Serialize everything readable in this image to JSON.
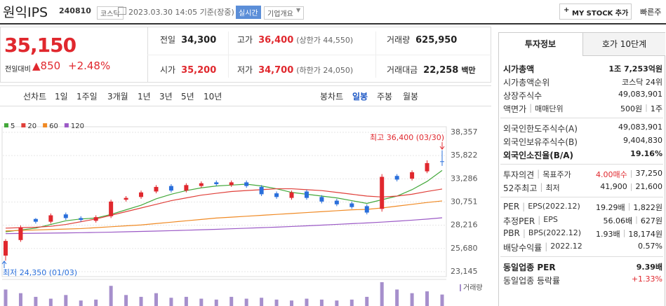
{
  "header": {
    "name": "원익IPS",
    "code": "240810",
    "market": "코스닥",
    "datetime": "2023.03.30 14:05 기준(장중)",
    "realtime": "실시간",
    "overview": "기업개요",
    "mystock": "MY STOCK 추가",
    "quick_order": "빠른주"
  },
  "price": {
    "current": "35,150",
    "change_label": "전일대비",
    "change": "▲850",
    "change_rate": "+2.48%"
  },
  "quote": [
    [
      {
        "label": "전일",
        "value": "34,300"
      },
      {
        "label": "고가",
        "value": "36,400",
        "note": "(상한가 44,550)"
      },
      {
        "label": "거래량",
        "value": "625,950"
      }
    ],
    [
      {
        "label": "시가",
        "value": "35,200"
      },
      {
        "label": "저가",
        "value": "34,700",
        "note": "(하한가 24,050)"
      },
      {
        "label": "거래대금",
        "value": "22,258",
        "note": "백만"
      }
    ]
  ],
  "toolbar": {
    "line": [
      "선차트",
      "1일",
      "1주일",
      "3개월",
      "1년",
      "3년",
      "5년",
      "10년"
    ],
    "candle": [
      "봉차트",
      "일봉",
      "주봉",
      "월봉"
    ]
  },
  "chart_data": {
    "type": "candlestick",
    "up_color": "#e0282e",
    "down_color": "#2a6fdb",
    "ylim": [
      23145,
      38357
    ],
    "yticks": [
      {
        "value": 23145,
        "label": "23,145"
      },
      {
        "value": 25680,
        "label": "25,680"
      },
      {
        "value": 28216,
        "label": "28,216"
      },
      {
        "value": 30751,
        "label": "30,751"
      },
      {
        "value": 33286,
        "label": "33,286"
      },
      {
        "value": 35822,
        "label": "35,822"
      },
      {
        "value": 38357,
        "label": "38,357"
      }
    ],
    "grid": true,
    "open": [
      24900,
      26600,
      28900,
      28600,
      29400,
      29000,
      28700,
      29200,
      31000,
      31300,
      31900,
      32500,
      32000,
      32500,
      32900,
      32600,
      32900,
      32400,
      31700,
      31200,
      31900,
      31300,
      30900,
      30600,
      30300,
      30000,
      33600,
      33300,
      34100,
      35200
    ],
    "high": [
      26700,
      28200,
      29000,
      29500,
      29600,
      29200,
      29300,
      31000,
      31400,
      32000,
      32600,
      32700,
      32800,
      33000,
      33100,
      33100,
      33100,
      32600,
      31900,
      32000,
      32100,
      31500,
      31100,
      30800,
      30500,
      33800,
      33800,
      34200,
      35300,
      36400
    ],
    "low": [
      24350,
      26400,
      28400,
      28400,
      28800,
      28600,
      28500,
      29000,
      30800,
      31100,
      31700,
      31800,
      31800,
      32300,
      32500,
      32400,
      32300,
      31400,
      31100,
      31000,
      31000,
      30600,
      30300,
      30000,
      29400,
      29700,
      33000,
      33100,
      33900,
      34700
    ],
    "close": [
      26500,
      28000,
      28600,
      29300,
      29000,
      28800,
      29100,
      30800,
      31200,
      31800,
      32400,
      32000,
      32600,
      32800,
      32700,
      32900,
      32500,
      31600,
      31300,
      31800,
      31200,
      30800,
      30500,
      30200,
      29600,
      33500,
      33200,
      34000,
      35000,
      35150
    ],
    "ma": [
      {
        "name": "5",
        "color": "#43a83a",
        "values": [
          27500,
          27700,
          27900,
          28300,
          28700,
          28900,
          29000,
          29400,
          29900,
          30400,
          31100,
          31600,
          32000,
          32300,
          32500,
          32600,
          32700,
          32500,
          32200,
          31800,
          31600,
          31400,
          31200,
          30900,
          30600,
          31000,
          31400,
          32100,
          33000,
          34200
        ]
      },
      {
        "name": "20",
        "color": "#e0403a",
        "values": [
          27900,
          27950,
          28000,
          28100,
          28300,
          28600,
          28900,
          29300,
          29700,
          30100,
          30500,
          30900,
          31200,
          31500,
          31700,
          31900,
          32000,
          32100,
          32200,
          32200,
          32100,
          32000,
          31800,
          31600,
          31400,
          31300,
          31400,
          31600,
          31900,
          32170
        ]
      },
      {
        "name": "60",
        "color": "#f08a24",
        "values": [
          27600,
          27650,
          27700,
          27750,
          27800,
          27850,
          27950,
          28050,
          28150,
          28250,
          28400,
          28550,
          28700,
          28850,
          29000,
          29100,
          29200,
          29300,
          29400,
          29500,
          29600,
          29700,
          29800,
          29900,
          29950,
          30100,
          30300,
          30500,
          30700,
          30870
        ]
      },
      {
        "name": "120",
        "color": "#9b59c6",
        "values": [
          27300,
          27320,
          27340,
          27360,
          27380,
          27400,
          27430,
          27460,
          27500,
          27540,
          27580,
          27620,
          27670,
          27720,
          27770,
          27830,
          27890,
          27950,
          28010,
          28080,
          28150,
          28230,
          28310,
          28390,
          28470,
          28560,
          28660,
          28770,
          28890,
          29030
        ]
      }
    ],
    "volume": {
      "name": "거래량",
      "color": "#a68fcc",
      "values": [
        900000,
        700000,
        500000,
        400000,
        600000,
        300000,
        350000,
        1100000,
        600000,
        500000,
        700000,
        450000,
        500000,
        400000,
        350000,
        500000,
        400000,
        450000,
        350000,
        300000,
        400000,
        350000,
        300000,
        350000,
        500000,
        1300000,
        900000,
        700000,
        800000,
        625950
      ]
    },
    "annotations": {
      "high": "최고 36,400 (03/30)",
      "low": "최저 24,350 (01/03)"
    }
  },
  "panel": {
    "tabs": [
      "투자정보",
      "호가 10단계"
    ],
    "sections": [
      [
        {
          "label": [
            "시가총액"
          ],
          "value": [
            "1조 7,253억원"
          ]
        },
        {
          "label": [
            "시가총액순위"
          ],
          "value": [
            "코스닥 24위"
          ]
        },
        {
          "label": [
            "상장주식수"
          ],
          "value": [
            "49,083,901"
          ]
        },
        {
          "label": [
            "액면가",
            "매매단위"
          ],
          "value": [
            "500원",
            "1주"
          ]
        }
      ],
      [
        {
          "label": [
            "외국인한도주식수(A)"
          ],
          "value": [
            "49,083,901"
          ]
        },
        {
          "label": [
            "외국인보유주식수(B)"
          ],
          "value": [
            "9,404,830"
          ]
        },
        {
          "label": [
            "외국인소진율(B/A)"
          ],
          "value": [
            "19.16%"
          ]
        }
      ],
      [
        {
          "label": [
            "투자의견",
            "목표주가"
          ],
          "value": [
            "4.00매수",
            "37,250"
          ]
        },
        {
          "label": [
            "52주최고",
            "최저"
          ],
          "value": [
            "41,900",
            "21,600"
          ]
        }
      ],
      [
        {
          "label": [
            "PER",
            "EPS(2022.12)"
          ],
          "value": [
            "19.29배",
            "1,822원"
          ]
        },
        {
          "label": [
            "추정PER",
            "EPS"
          ],
          "value": [
            "56.06배",
            "627원"
          ]
        },
        {
          "label": [
            "PBR",
            "BPS(2022.12)"
          ],
          "value": [
            "1.93배",
            "18,174원"
          ]
        },
        {
          "label": [
            "배당수익률",
            "2022.12"
          ],
          "value": [
            "0.57%"
          ]
        }
      ],
      [
        {
          "label": [
            "동일업종 PER"
          ],
          "value": [
            "9.39배"
          ]
        },
        {
          "label": [
            "동일업종 등락률"
          ],
          "value": [
            "+1.33%"
          ]
        }
      ]
    ]
  }
}
